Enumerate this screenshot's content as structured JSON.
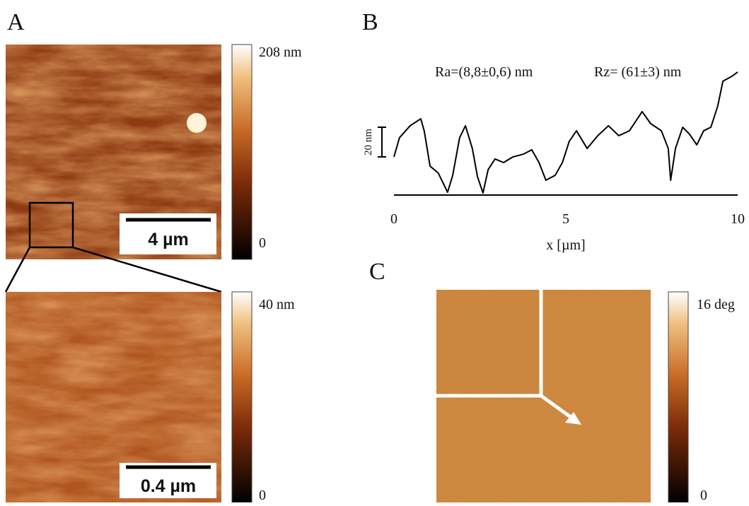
{
  "panel_a": {
    "label": "A",
    "top_image": {
      "scale_bar": "4 µm",
      "colorbar": {
        "max": "208 nm",
        "min": "0"
      }
    },
    "bottom_image": {
      "scale_bar": "0.4 µm",
      "colorbar": {
        "max": "40 nm",
        "min": "0"
      }
    }
  },
  "chart_data": {
    "type": "line",
    "label": "B",
    "annotations": [
      "Ra=(8,8±0,6) nm",
      "Rz= (61±3) nm"
    ],
    "scale_bar": {
      "value": 20,
      "label": "20 nm"
    },
    "xlabel": "x [µm]",
    "xlim": [
      0,
      10
    ],
    "xticks": [
      0,
      5,
      10
    ],
    "ylim": [
      0,
      90
    ],
    "color": "#000000",
    "x": [
      0,
      0.16,
      0.47,
      0.78,
      0.88,
      1.05,
      1.29,
      1.56,
      1.71,
      1.91,
      2.08,
      2.28,
      2.43,
      2.59,
      2.74,
      2.94,
      3.19,
      3.46,
      3.77,
      4.01,
      4.22,
      4.42,
      4.69,
      4.9,
      5.1,
      5.31,
      5.62,
      5.93,
      6.24,
      6.54,
      6.85,
      7.22,
      7.47,
      7.78,
      7.98,
      8.05,
      8.19,
      8.4,
      8.6,
      8.81,
      9.01,
      9.22,
      9.42,
      9.57,
      9.83,
      10
    ],
    "values": [
      25.7,
      38.6,
      46.7,
      51.4,
      43.3,
      19.5,
      14.8,
      1.9,
      13.3,
      38.6,
      46.7,
      31.4,
      12.4,
      1.4,
      17.1,
      24.3,
      21.9,
      25.7,
      27.6,
      30.5,
      21.9,
      10,
      13.3,
      21.9,
      36.2,
      43.3,
      31.4,
      40,
      46.7,
      40,
      43.3,
      56.2,
      48.1,
      43.3,
      31.4,
      10,
      31.4,
      45.7,
      41,
      33.8,
      43.3,
      45.7,
      60,
      76.7,
      80,
      82.9
    ]
  },
  "panel_c": {
    "label": "C",
    "colorbar": {
      "max": "16 deg",
      "min": "0"
    }
  }
}
